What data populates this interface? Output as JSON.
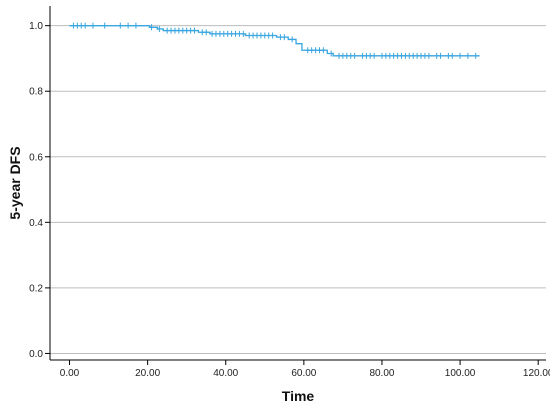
{
  "chart_data": {
    "type": "line",
    "title": "",
    "xlabel": "Time",
    "ylabel": "5-year DFS",
    "xlim": [
      -5,
      122
    ],
    "ylim": [
      -0.02,
      1.06
    ],
    "x_ticks": [
      0,
      20,
      40,
      60,
      80,
      100,
      120
    ],
    "x_tick_labels": [
      "0.00",
      "20.00",
      "40.00",
      "60.00",
      "80.00",
      "100.00",
      "120.00"
    ],
    "y_ticks": [
      0,
      0.2,
      0.4,
      0.6,
      0.8,
      1.0
    ],
    "y_tick_labels": [
      "0.0",
      "0.2",
      "0.4",
      "0.6",
      "0.8",
      "1.0"
    ],
    "grid": "horizontal",
    "series": [
      {
        "color": "#3aa6e0",
        "steps": [
          [
            0,
            1.0
          ],
          [
            20.5,
            0.995
          ],
          [
            22.5,
            0.99
          ],
          [
            24,
            0.985
          ],
          [
            33,
            0.98
          ],
          [
            36,
            0.975
          ],
          [
            45,
            0.97
          ],
          [
            53,
            0.965
          ],
          [
            56,
            0.958
          ],
          [
            58,
            0.945
          ],
          [
            59.5,
            0.925
          ],
          [
            66,
            0.915
          ],
          [
            67.5,
            0.908
          ],
          [
            105,
            0.908
          ]
        ],
        "censored": [
          [
            1,
            1.0
          ],
          [
            2,
            1.0
          ],
          [
            3,
            1.0
          ],
          [
            4,
            1.0
          ],
          [
            6,
            1.0
          ],
          [
            9,
            1.0
          ],
          [
            13,
            1.0
          ],
          [
            15,
            1.0
          ],
          [
            17,
            1.0
          ],
          [
            21,
            0.995
          ],
          [
            23,
            0.99
          ],
          [
            25,
            0.985
          ],
          [
            26,
            0.985
          ],
          [
            27,
            0.985
          ],
          [
            28,
            0.985
          ],
          [
            29,
            0.985
          ],
          [
            30,
            0.985
          ],
          [
            31,
            0.985
          ],
          [
            32,
            0.985
          ],
          [
            34,
            0.98
          ],
          [
            35,
            0.98
          ],
          [
            36.5,
            0.975
          ],
          [
            37.5,
            0.975
          ],
          [
            38.5,
            0.975
          ],
          [
            39.5,
            0.975
          ],
          [
            40.5,
            0.975
          ],
          [
            41.5,
            0.975
          ],
          [
            42.5,
            0.975
          ],
          [
            43.5,
            0.975
          ],
          [
            44.5,
            0.975
          ],
          [
            46,
            0.97
          ],
          [
            47,
            0.97
          ],
          [
            48,
            0.97
          ],
          [
            49,
            0.97
          ],
          [
            50,
            0.97
          ],
          [
            51,
            0.97
          ],
          [
            52,
            0.97
          ],
          [
            54,
            0.965
          ],
          [
            55,
            0.965
          ],
          [
            57,
            0.958
          ],
          [
            61,
            0.925
          ],
          [
            62,
            0.925
          ],
          [
            63,
            0.925
          ],
          [
            64,
            0.925
          ],
          [
            65,
            0.925
          ],
          [
            67,
            0.915
          ],
          [
            69,
            0.908
          ],
          [
            70,
            0.908
          ],
          [
            71,
            0.908
          ],
          [
            72,
            0.908
          ],
          [
            73,
            0.908
          ],
          [
            75,
            0.908
          ],
          [
            76,
            0.908
          ],
          [
            77,
            0.908
          ],
          [
            78,
            0.908
          ],
          [
            80,
            0.908
          ],
          [
            81,
            0.908
          ],
          [
            82,
            0.908
          ],
          [
            83,
            0.908
          ],
          [
            84,
            0.908
          ],
          [
            85,
            0.908
          ],
          [
            86,
            0.908
          ],
          [
            87,
            0.908
          ],
          [
            88,
            0.908
          ],
          [
            89,
            0.908
          ],
          [
            90,
            0.908
          ],
          [
            91,
            0.908
          ],
          [
            92,
            0.908
          ],
          [
            94,
            0.908
          ],
          [
            95,
            0.908
          ],
          [
            97,
            0.908
          ],
          [
            98,
            0.908
          ],
          [
            100,
            0.908
          ],
          [
            102,
            0.908
          ],
          [
            104,
            0.908
          ]
        ]
      }
    ]
  }
}
